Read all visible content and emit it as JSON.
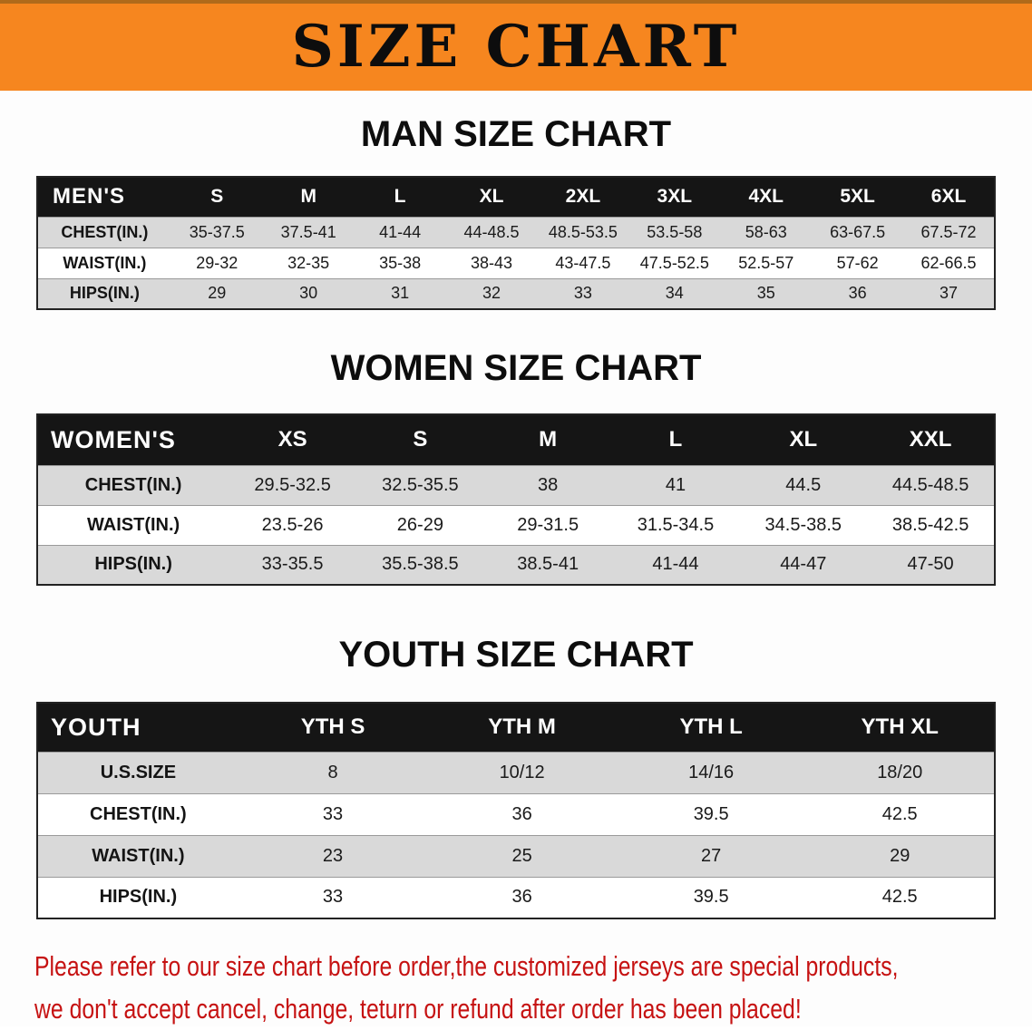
{
  "colors": {
    "banner_orange": "#f6861f",
    "banner_edge": "#b06a1a",
    "table_header_bg": "#151515",
    "table_header_text": "#ffffff",
    "row_gray": "#d9d9d9",
    "row_white": "#ffffff",
    "footer_red": "#c61212"
  },
  "banner": {
    "title": "SIZE CHART"
  },
  "man": {
    "heading": "MAN SIZE CHART",
    "table": {
      "header": [
        "MEN'S",
        "S",
        "M",
        "L",
        "XL",
        "2XL",
        "3XL",
        "4XL",
        "5XL",
        "6XL"
      ],
      "rows": [
        [
          "CHEST(IN.)",
          "35-37.5",
          "37.5-41",
          "41-44",
          "44-48.5",
          "48.5-53.5",
          "53.5-58",
          "58-63",
          "63-67.5",
          "67.5-72"
        ],
        [
          "WAIST(IN.)",
          "29-32",
          "32-35",
          "35-38",
          "38-43",
          "43-47.5",
          "47.5-52.5",
          "52.5-57",
          "57-62",
          "62-66.5"
        ],
        [
          "HIPS(IN.)",
          "29",
          "30",
          "31",
          "32",
          "33",
          "34",
          "35",
          "36",
          "37"
        ]
      ]
    }
  },
  "women": {
    "heading": "WOMEN SIZE CHART",
    "table": {
      "header": [
        "WOMEN'S",
        "XS",
        "S",
        "M",
        "L",
        "XL",
        "XXL"
      ],
      "rows": [
        [
          "CHEST(IN.)",
          "29.5-32.5",
          "32.5-35.5",
          "38",
          "41",
          "44.5",
          "44.5-48.5"
        ],
        [
          "WAIST(IN.)",
          "23.5-26",
          "26-29",
          "29-31.5",
          "31.5-34.5",
          "34.5-38.5",
          "38.5-42.5"
        ],
        [
          "HIPS(IN.)",
          "33-35.5",
          "35.5-38.5",
          "38.5-41",
          "41-44",
          "44-47",
          "47-50"
        ]
      ]
    }
  },
  "youth": {
    "heading": "YOUTH SIZE CHART",
    "table": {
      "header": [
        "YOUTH",
        "YTH S",
        "YTH M",
        "YTH L",
        "YTH XL"
      ],
      "rows": [
        [
          "U.S.SIZE",
          "8",
          "10/12",
          "14/16",
          "18/20"
        ],
        [
          "CHEST(IN.)",
          "33",
          "36",
          "39.5",
          "42.5"
        ],
        [
          "WAIST(IN.)",
          "23",
          "25",
          "27",
          "29"
        ],
        [
          "HIPS(IN.)",
          "33",
          "36",
          "39.5",
          "42.5"
        ]
      ]
    }
  },
  "footer": {
    "line1": "Please refer to our size chart before order,the customized jerseys are special products,",
    "line2": "we don't accept cancel, change, teturn or refund after order has been placed!"
  }
}
